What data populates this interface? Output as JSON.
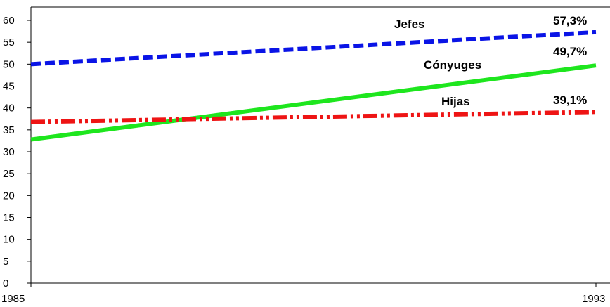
{
  "chart_data": {
    "type": "line",
    "x": [
      1985,
      1993
    ],
    "x_tick_labels": [
      "1985",
      "1993"
    ],
    "ylim": [
      0,
      60
    ],
    "y_ticks": [
      0,
      5,
      10,
      15,
      20,
      25,
      30,
      35,
      40,
      45,
      50,
      55,
      60
    ],
    "grid": false,
    "legend": "none",
    "series": [
      {
        "name": "Jefes",
        "values": [
          50.0,
          57.3
        ],
        "end_label": "57,3%",
        "color": "#0a14e6",
        "style": "dashed"
      },
      {
        "name": "Cónyuges",
        "values": [
          32.8,
          49.7
        ],
        "end_label": "49,7%",
        "color": "#1ee61e",
        "style": "solid"
      },
      {
        "name": "Hijas",
        "values": [
          36.8,
          39.1
        ],
        "end_label": "39,1%",
        "color": "#ee1414",
        "style": "dash-dot-dot"
      }
    ]
  }
}
